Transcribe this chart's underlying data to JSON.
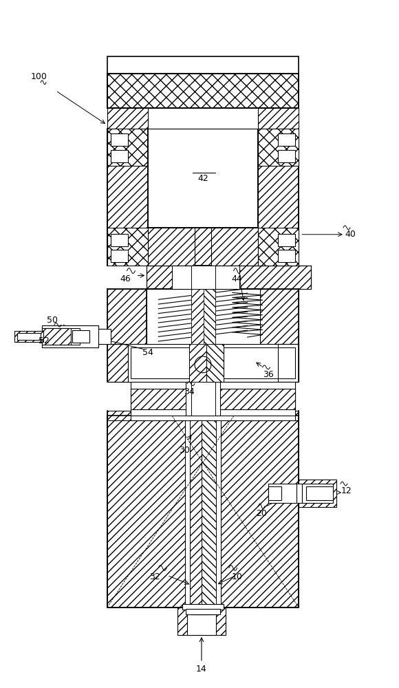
{
  "bg_color": "#ffffff",
  "lc": "#000000",
  "figsize": [
    5.8,
    10.0
  ],
  "dpi": 100
}
